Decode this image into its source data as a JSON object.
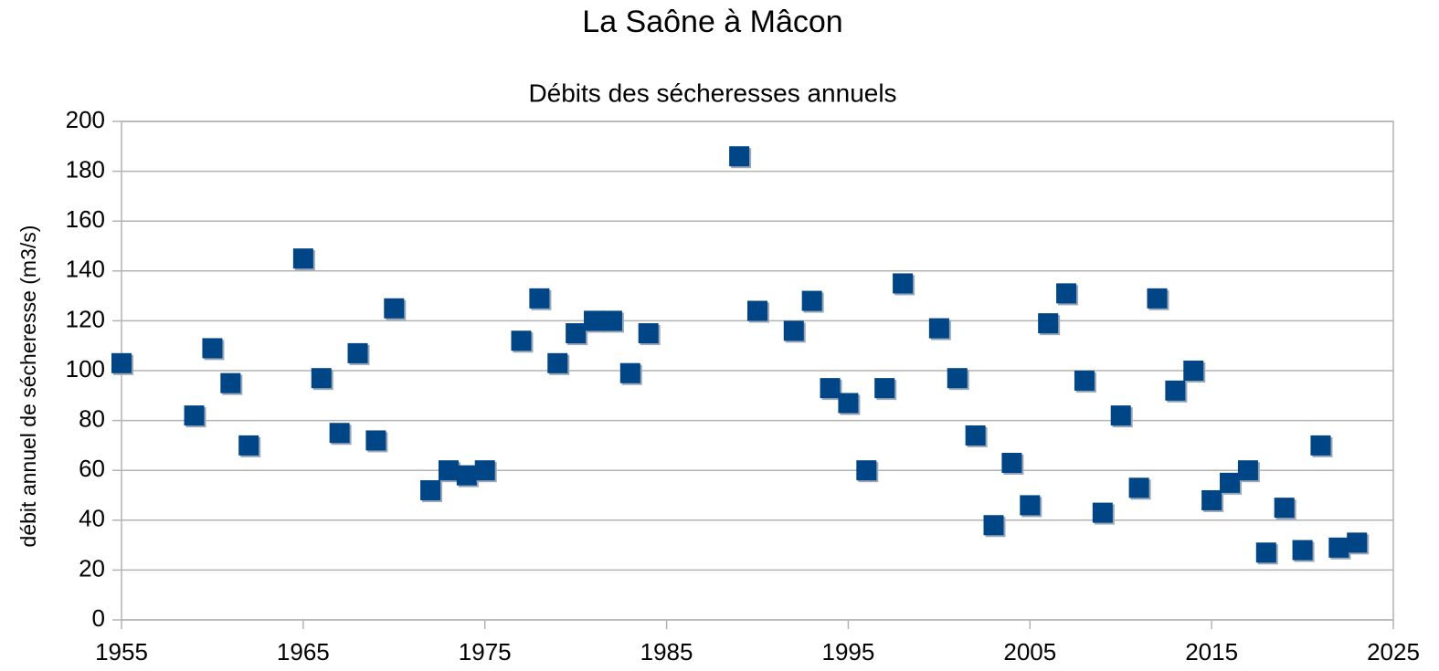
{
  "chart_data": {
    "type": "scatter",
    "title": "La Saône à Mâcon",
    "subtitle": "Débits des sécheresses annuels",
    "y_label": "débit annuel de sécheresse (m3/s)",
    "color": "#004586",
    "x": [
      1955,
      1959,
      1960,
      1961,
      1962,
      1965,
      1966,
      1967,
      1968,
      1969,
      1970,
      1972,
      1973,
      1974,
      1975,
      1977,
      1978,
      1979,
      1980,
      1981,
      1982,
      1983,
      1984,
      1989,
      1990,
      1992,
      1993,
      1994,
      1995,
      1996,
      1997,
      1998,
      2000,
      2001,
      2002,
      2003,
      2004,
      2005,
      2006,
      2007,
      2008,
      2009,
      2010,
      2011,
      2012,
      2013,
      2014,
      2015,
      2016,
      2017,
      2018,
      2019,
      2020,
      2021,
      2022,
      2023
    ],
    "values": [
      103,
      82,
      109,
      95,
      70,
      145,
      97,
      75,
      107,
      72,
      125,
      52,
      60,
      58,
      60,
      112,
      129,
      103,
      115,
      120,
      120,
      99,
      115,
      186,
      124,
      116,
      128,
      93,
      87,
      60,
      93,
      135,
      117,
      97,
      74,
      38,
      63,
      46,
      119,
      131,
      96,
      43,
      82,
      53,
      129,
      92,
      100,
      48,
      55,
      60,
      27,
      45,
      28,
      70,
      29,
      31
    ],
    "xlim": [
      1955,
      2025
    ],
    "xticks": [
      1955,
      1965,
      1975,
      1985,
      1995,
      2005,
      2015,
      2025
    ],
    "ylim": [
      0,
      200
    ],
    "yticks": [
      0,
      20,
      40,
      60,
      80,
      100,
      120,
      140,
      160,
      180,
      200
    ],
    "grid": true
  }
}
